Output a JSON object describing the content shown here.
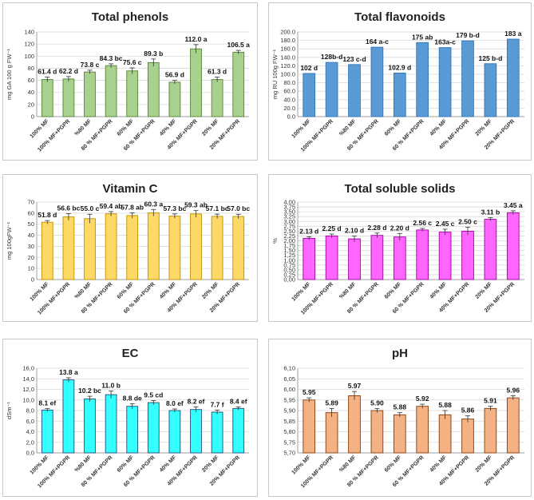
{
  "chart_data": [
    {
      "type": "bar",
      "title": "Total phenols",
      "ylabel": "mg GA 100 g FW⁻¹",
      "ylim": [
        0,
        140
      ],
      "ystep": 20,
      "ydecimals": 0,
      "color": "#a9d18e",
      "stroke": "#548235",
      "gridlines": true,
      "categories": [
        "100% MF",
        "100% MF+PGPR",
        "%80 MF",
        "80 % MF+PGPR",
        "60% MF",
        "60 % MF+PGPR",
        "40% MF",
        "40% MF+PGPR",
        "20% MF",
        "20% MF+PGPR"
      ],
      "values": [
        61.4,
        62.2,
        73.8,
        84.3,
        75.6,
        89.3,
        56.9,
        112.0,
        61.3,
        106.5
      ],
      "errors": [
        4,
        4,
        3,
        3,
        5,
        6,
        3,
        7,
        4,
        3
      ],
      "labels": [
        "61.4 d",
        "62.2 d",
        "73.8 c",
        "84.3 bc",
        "75.6 c",
        "89.3 b",
        "56.9 d",
        "112.0 a",
        "61.3 d",
        "106.5 a"
      ]
    },
    {
      "type": "bar",
      "title": "Total flavonoids",
      "ylabel": "mg RU 100g FW⁻¹",
      "ylim": [
        0,
        200
      ],
      "ystep": 20,
      "ydecimals": 1,
      "color": "#5b9bd5",
      "stroke": "#2e75b6",
      "gridlines": true,
      "categories": [
        "100% MF",
        "100% MF+PGPR",
        "%80 MF",
        "80 % MF+PGPR",
        "60% MF",
        "60 % MF+PGPR",
        "40% MF",
        "40% MF+PGPR",
        "20% MF",
        "20% MF+PGPR"
      ],
      "values": [
        102,
        128,
        123,
        164,
        102.9,
        175,
        163,
        179,
        125,
        183
      ],
      "errors": [
        0,
        0,
        0,
        0,
        0,
        0,
        0,
        0,
        0,
        0
      ],
      "labels": [
        "102 d",
        "128b-d",
        "123 c-d",
        "164 a-c",
        "102.9 d",
        "175 ab",
        "163a-c",
        "179 b-d",
        "125 b-d",
        "183 a"
      ]
    },
    {
      "type": "bar",
      "title": "Vitamin C",
      "ylabel": "mg 100gFW⁻¹",
      "ylim": [
        0,
        70
      ],
      "ystep": 10,
      "ydecimals": 0,
      "color": "#ffd966",
      "stroke": "#bf9000",
      "gridlines": true,
      "categories": [
        "100% MF",
        "100% MF+PGPR",
        "%80 MF",
        "80 % MF+PGPR",
        "60% MF",
        "60 % MF+PGPR",
        "40% MF",
        "40% MF+PGPR",
        "20% MF",
        "20% MF+PGPR"
      ],
      "values": [
        51.8,
        56.6,
        55.0,
        59.4,
        57.8,
        60.3,
        57.3,
        59.3,
        57.1,
        57.0
      ],
      "errors": [
        1.5,
        3,
        4,
        2,
        2.5,
        3,
        2,
        3,
        2,
        2
      ],
      "labels": [
        "51.8 d",
        "56.6 bc",
        "55.0 c",
        "59.4 ab",
        "57.8 ab",
        "60.3 a",
        "57.3 bc",
        "59.3 ab",
        "57.1 bc",
        "57.0 bc"
      ]
    },
    {
      "type": "bar",
      "title": "Total soluble solids",
      "ylabel": "%",
      "ylim": [
        0,
        4.0
      ],
      "ystep": 0.25,
      "ydecimals": 2,
      "decimal_comma": true,
      "color": "#ff66ff",
      "stroke": "#a000a0",
      "gridlines": true,
      "categories": [
        "100% MF",
        "100% MF+PGPR",
        "%80 MF",
        "80 % MF+PGPR",
        "60% MF",
        "60 % MF+PGPR",
        "40% MF",
        "40% MF+PGPR",
        "20% MF",
        "20% MF+PGPR"
      ],
      "values": [
        2.13,
        2.25,
        2.1,
        2.28,
        2.2,
        2.56,
        2.45,
        2.5,
        3.11,
        3.45
      ],
      "errors": [
        0.08,
        0.1,
        0.15,
        0.12,
        0.18,
        0.08,
        0.15,
        0.2,
        0.08,
        0.1
      ],
      "labels": [
        "2.13 d",
        "2.25 d",
        "2.10 d",
        "2.28 d",
        "2.20 d",
        "2.56 c",
        "2.45 c",
        "2.50 c",
        "3.11 b",
        "3.45 a"
      ]
    },
    {
      "type": "bar",
      "title": "EC",
      "ylabel": "dSm⁻¹",
      "ylim": [
        0,
        16
      ],
      "ystep": 2,
      "ydecimals": 1,
      "decimal_comma": true,
      "color": "#33ffff",
      "stroke": "#1f4e79",
      "gridlines": true,
      "categories": [
        "100% MF",
        "100% MF+PGPR",
        "%80 MF",
        "80 % MF+PGPR",
        "60% MF",
        "60 % MF+PGPR",
        "40% MF",
        "40% MF+PGPR",
        "20% MF",
        "20% MF+PGPR"
      ],
      "values": [
        8.1,
        13.8,
        10.2,
        11.0,
        8.8,
        9.5,
        8.0,
        8.2,
        7.7,
        8.4
      ],
      "errors": [
        0.3,
        0.4,
        0.5,
        0.7,
        0.5,
        0.4,
        0.3,
        0.5,
        0.4,
        0.3
      ],
      "labels": [
        "8.1 ef",
        "13.8 a",
        "10.2 bc",
        "11.0 b",
        "8.8 de",
        "9.5 cd",
        "8.0 ef",
        "8.2 ef",
        "7.7 f",
        "8.4 ef"
      ]
    },
    {
      "type": "bar",
      "title": "pH",
      "ylabel": "",
      "ylim": [
        5.7,
        6.1
      ],
      "ystep": 0.05,
      "ydecimals": 2,
      "decimal_comma": true,
      "color": "#f4b183",
      "stroke": "#843c0c",
      "gridlines": true,
      "categories": [
        "100% MF",
        "100% MF+PGPR",
        "%80 MF",
        "80 % MF+PGPR",
        "60% MF",
        "60 % MF+PGPR",
        "40% MF",
        "40% MF+PGPR",
        "20% MF",
        "20% MF+PGPR"
      ],
      "values": [
        5.95,
        5.89,
        5.97,
        5.9,
        5.88,
        5.92,
        5.88,
        5.86,
        5.91,
        5.96
      ],
      "errors": [
        0.01,
        0.02,
        0.02,
        0.01,
        0.01,
        0.01,
        0.02,
        0.015,
        0.01,
        0.01
      ],
      "labels": [
        "5.95",
        "5.89",
        "5.97",
        "5.90",
        "5.88",
        "5.92",
        "5.88",
        "5.86",
        "5.91",
        "5.96"
      ]
    }
  ]
}
